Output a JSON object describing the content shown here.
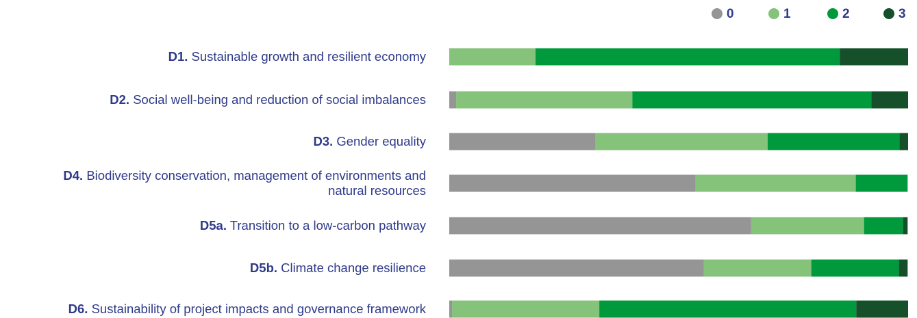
{
  "chart_data": {
    "type": "stacked-bar-horizontal",
    "category_codes": [
      "D1.",
      "D2.",
      "D3.",
      "D4.",
      "D5a.",
      "D5b.",
      "D6."
    ],
    "categories": [
      "Sustainable growth and resilient economy",
      "Social well-being and reduction of social imbalances",
      "Gender equality",
      "Biodiversity conservation, management of environments and natural resources",
      "Transition to a low-carbon pathway",
      "Climate change resilience",
      "Sustainability of project impacts and governance framework"
    ],
    "xlim": [
      0,
      100
    ],
    "legend": "top-right",
    "series": [
      {
        "name": "0",
        "color": "#959595",
        "values": [
          0,
          1.5,
          31.9,
          53.7,
          65.8,
          55.5,
          0.6
        ]
      },
      {
        "name": "1",
        "color": "#85c27a",
        "values": [
          18.8,
          38.4,
          37.5,
          34.9,
          24.6,
          23.4,
          32.1
        ]
      },
      {
        "name": "2",
        "color": "#009a3d",
        "values": [
          66.3,
          52.1,
          28.7,
          11.3,
          8.5,
          19.1,
          56.0
        ]
      },
      {
        "name": "3",
        "color": "#15502a",
        "values": [
          14.9,
          8.0,
          1.9,
          0,
          1.0,
          1.9,
          11.3
        ]
      }
    ]
  }
}
